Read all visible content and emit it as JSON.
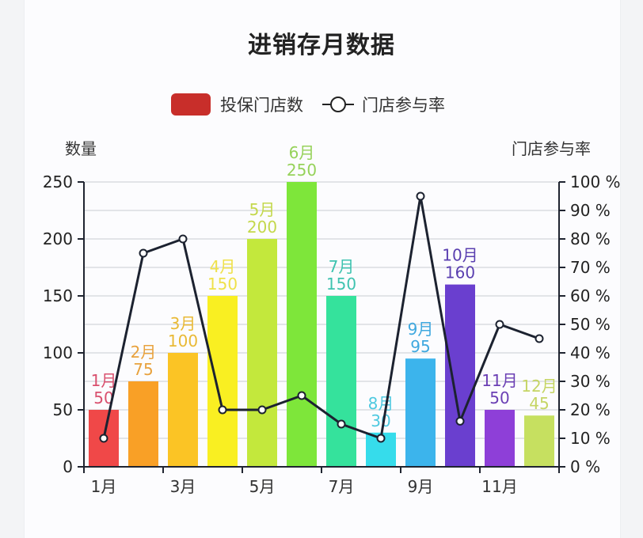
{
  "title": "进销存月数据",
  "legend": {
    "bar_label": "投保门店数",
    "bar_color": "#c82e2a",
    "line_label": "门店参与率"
  },
  "y_axis_left_name": "数量",
  "y_axis_right_name": "门店参与率",
  "chart_data": {
    "type": "bar+line",
    "title": "进销存月数据",
    "categories": [
      "1月",
      "2月",
      "3月",
      "4月",
      "5月",
      "6月",
      "7月",
      "8月",
      "9月",
      "10月",
      "11月",
      "12月"
    ],
    "x_tick_labels": [
      "1月",
      "3月",
      "5月",
      "7月",
      "9月",
      "11月"
    ],
    "series": [
      {
        "name": "投保门店数",
        "type": "bar",
        "axis": "left",
        "values": [
          50,
          75,
          100,
          150,
          200,
          250,
          150,
          30,
          95,
          160,
          50,
          45
        ],
        "colors": [
          "#f04848",
          "#f9a026",
          "#fbc425",
          "#f9ef22",
          "#c3e83c",
          "#7ee63a",
          "#35e29c",
          "#36dceb",
          "#3cb4ec",
          "#6a3fcf",
          "#8e3fd8",
          "#c6e060"
        ],
        "label_colors": [
          "#d9506e",
          "#e8a23e",
          "#e9b935",
          "#efe14a",
          "#c4d84c",
          "#96d25a",
          "#3fc3b0",
          "#4ec9e0",
          "#3fa8df",
          "#5a3fb0",
          "#6b3fb4",
          "#c5d564"
        ]
      },
      {
        "name": "门店参与率",
        "type": "line",
        "axis": "right",
        "unit": "%",
        "values": [
          10,
          75,
          80,
          20,
          20,
          25,
          15,
          10,
          95,
          16,
          50,
          45
        ]
      }
    ],
    "ylabel_left": "数量",
    "ylabel_right": "门店参与率",
    "ylim_left": [
      0,
      250
    ],
    "yticks_left": [
      0,
      50,
      100,
      150,
      200,
      250
    ],
    "ylim_right": [
      0,
      100
    ],
    "yticks_right": [
      "0 %",
      "10 %",
      "20 %",
      "30 %",
      "40 %",
      "50 %",
      "60 %",
      "70 %",
      "80 %",
      "90 %",
      "100 %"
    ],
    "grid": true,
    "legend_position": "top"
  }
}
